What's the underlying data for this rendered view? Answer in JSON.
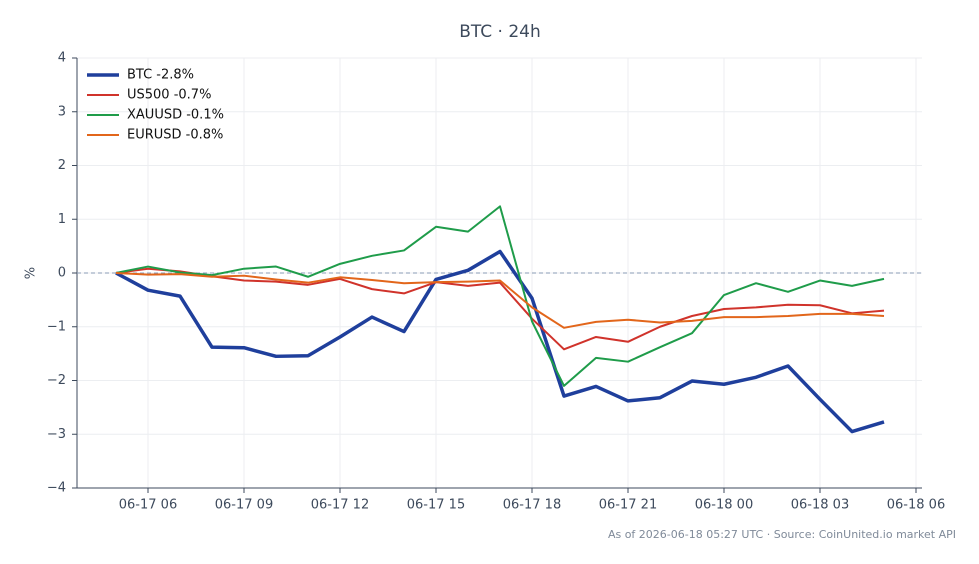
{
  "chart_data": {
    "type": "line",
    "title": "BTC · 24h",
    "ylabel": "%",
    "footnote": "As of 2026-06-18 05:27 UTC · Source: CoinUnited.io market API",
    "x": [
      "06-17 05",
      "06-17 06",
      "06-17 07",
      "06-17 08",
      "06-17 09",
      "06-17 10",
      "06-17 11",
      "06-17 12",
      "06-17 13",
      "06-17 14",
      "06-17 15",
      "06-17 16",
      "06-17 17",
      "06-17 18",
      "06-17 19",
      "06-17 20",
      "06-17 21",
      "06-17 22",
      "06-17 23",
      "06-18 00",
      "06-18 01",
      "06-18 02",
      "06-18 03",
      "06-18 04",
      "06-18 05"
    ],
    "xticks": [
      "06-17 06",
      "06-17 09",
      "06-17 12",
      "06-17 15",
      "06-17 18",
      "06-17 21",
      "06-18 00",
      "06-18 03",
      "06-18 06"
    ],
    "ylim": [
      -4,
      4
    ],
    "yticks": [
      {
        "value": -4,
        "label": "−4"
      },
      {
        "value": -3,
        "label": "−3"
      },
      {
        "value": -2,
        "label": "−2"
      },
      {
        "value": -1,
        "label": "−1"
      },
      0,
      1,
      2,
      3,
      4
    ],
    "grid": true,
    "zero_line": true,
    "legend": "upper left",
    "series": [
      {
        "name": "BTC -2.8%",
        "color": "#1f3f9c",
        "line_width": 3.5,
        "values": [
          0,
          -0.32,
          -0.43,
          -1.38,
          -1.39,
          -1.55,
          -1.54,
          -1.19,
          -0.82,
          -1.09,
          -0.12,
          0.05,
          0.4,
          -0.47,
          -2.29,
          -2.11,
          -2.38,
          -2.32,
          -2.01,
          -2.07,
          -1.94,
          -1.73,
          -2.35,
          -2.95,
          -2.77
        ]
      },
      {
        "name": "US500 -0.7%",
        "color": "#d0332b",
        "line_width": 2,
        "values": [
          0,
          0.08,
          0.03,
          -0.06,
          -0.14,
          -0.16,
          -0.22,
          -0.11,
          -0.3,
          -0.38,
          -0.17,
          -0.24,
          -0.18,
          -0.85,
          -1.42,
          -1.19,
          -1.28,
          -1,
          -0.8,
          -0.67,
          -0.64,
          -0.59,
          -0.6,
          -0.75,
          -0.7
        ]
      },
      {
        "name": "XAUUSD -0.1%",
        "color": "#1f9c4a",
        "line_width": 2,
        "values": [
          0,
          0.12,
          0.01,
          -0.04,
          0.08,
          0.12,
          -0.07,
          0.17,
          0.32,
          0.42,
          0.86,
          0.77,
          1.24,
          -0.9,
          -2.1,
          -1.58,
          -1.65,
          -1.38,
          -1.12,
          -0.41,
          -0.19,
          -0.35,
          -0.14,
          -0.24,
          -0.11
        ]
      },
      {
        "name": "EURUSD -0.8%",
        "color": "#e2661b",
        "line_width": 2,
        "values": [
          0,
          -0.03,
          -0.02,
          -0.07,
          -0.05,
          -0.12,
          -0.18,
          -0.08,
          -0.13,
          -0.19,
          -0.17,
          -0.16,
          -0.14,
          -0.64,
          -1.02,
          -0.91,
          -0.87,
          -0.92,
          -0.89,
          -0.82,
          -0.82,
          -0.8,
          -0.76,
          -0.76,
          -0.8
        ]
      }
    ]
  }
}
